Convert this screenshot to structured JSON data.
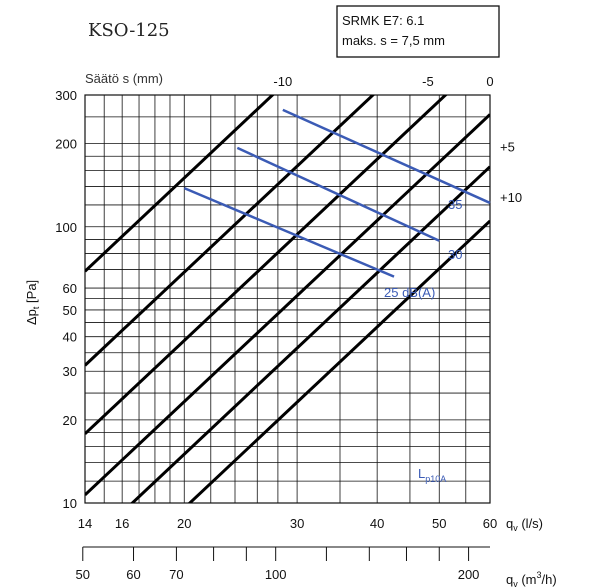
{
  "chart_data": {
    "type": "line",
    "title": "KSO-125",
    "info_box": [
      "SRMK E7: 6.1",
      "maks. s = 7,5 mm"
    ],
    "setting_axis_label": "Säätö s (mm)",
    "ylabel": "Δp_t [Pa]",
    "ylabel_main": "Δp",
    "ylabel_sub": "t",
    "ylabel_unit": " [Pa]",
    "xlabel_ls": "q_v (l/s)",
    "xlabel_ls_main": "q",
    "xlabel_ls_sub": "v",
    "xlabel_ls_unit": " (l/s)",
    "xlabel_m3h": "q_v (m³/h)",
    "xlabel_m3h_main": "q",
    "xlabel_m3h_sub": "v",
    "xlabel_m3h_unit": " (m",
    "xlabel_m3h_sup": "3",
    "xlabel_m3h_tail": "/h)",
    "x_scale": "log",
    "y_scale": "log",
    "xlim_ls": [
      14,
      60
    ],
    "ylim_pa": [
      10,
      300
    ],
    "x_ticks_ls": [
      14,
      16,
      20,
      30,
      40,
      50,
      60
    ],
    "x_tick_labels_ls": [
      "14",
      "16",
      "20",
      "30",
      "40",
      "50",
      "60"
    ],
    "x_ticks_m3h": [
      50,
      60,
      70,
      100,
      200
    ],
    "x_tick_labels_m3h": [
      "50",
      "60",
      "70",
      "100",
      "200"
    ],
    "y_ticks": [
      10,
      20,
      30,
      40,
      50,
      60,
      100,
      200,
      300
    ],
    "y_tick_labels": [
      "10",
      "20",
      "30",
      "40",
      "50",
      "60",
      "100",
      "200",
      "300"
    ],
    "grid": true,
    "setting_lines": [
      {
        "label": "-10",
        "x_at_top": 28.5
      },
      {
        "label": "-5",
        "x_at_top": 48
      },
      {
        "label": "0",
        "x_at_top": 60
      },
      {
        "label": "+5",
        "x_at_top": 60,
        "y_at_right": 195
      },
      {
        "label": "+10",
        "x_at_top": 60,
        "y_at_right": 128
      },
      {
        "label": "",
        "x_at_top": 60,
        "y_at_right": 53
      }
    ],
    "setting_line_points": [
      {
        "x": [
          14,
          60
        ],
        "y": [
          69,
          1650
        ]
      },
      {
        "x": [
          14,
          60
        ],
        "y": [
          31.5,
          750
        ]
      },
      {
        "x": [
          14,
          60
        ],
        "y": [
          17.8,
          425
        ]
      },
      {
        "x": [
          14,
          60
        ],
        "y": [
          10.7,
          255
        ]
      },
      {
        "x": [
          14,
          60
        ],
        "y": [
          6.9,
          165
        ]
      },
      {
        "x": [
          14,
          60
        ],
        "y": [
          4.4,
          105
        ]
      }
    ],
    "sound_lines": [
      {
        "name": "25 dB(A)",
        "x": [
          20,
          42.5
        ],
        "y": [
          138,
          66
        ]
      },
      {
        "name": "30",
        "x": [
          24.2,
          50
        ],
        "y": [
          193,
          89
        ]
      },
      {
        "name": "35",
        "x": [
          28.5,
          60
        ],
        "y": [
          265,
          122
        ]
      }
    ],
    "sound_line_labels": [
      "35",
      "30",
      "25 dB(A)"
    ],
    "corner_label_main": "L",
    "corner_label_sub": "p10A"
  }
}
